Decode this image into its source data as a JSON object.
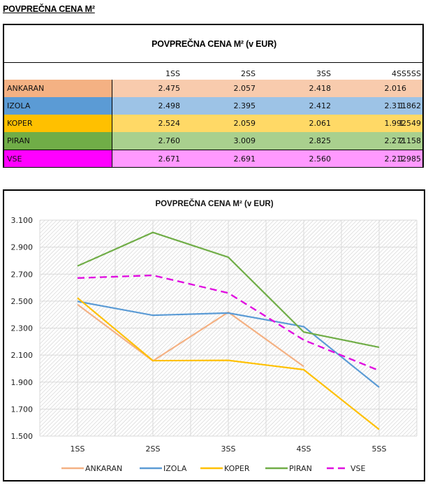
{
  "page_title": "POVPREČNA CENA M²",
  "table": {
    "title": "POVPREČNA CENA M² (v EUR)",
    "columns": [
      "1SS",
      "2SS",
      "3SS",
      "4SS",
      "5SS"
    ],
    "rows": [
      {
        "label": "ANKARAN",
        "values": [
          "2.475",
          "2.057",
          "2.418",
          "2.016",
          ""
        ],
        "label_color": "#F4B183",
        "cell_color": "#F8CBAD"
      },
      {
        "label": "IZOLA",
        "values": [
          "2.498",
          "2.395",
          "2.412",
          "2.311",
          "1.862"
        ],
        "label_color": "#5B9BD5",
        "cell_color": "#9DC3E6"
      },
      {
        "label": "KOPER",
        "values": [
          "2.524",
          "2.059",
          "2.061",
          "1.992",
          "1.549"
        ],
        "label_color": "#FFC000",
        "cell_color": "#FFD966"
      },
      {
        "label": "PIRAN",
        "values": [
          "2.760",
          "3.009",
          "2.825",
          "2.271",
          "2.158"
        ],
        "label_color": "#70AD47",
        "cell_color": "#A9D08E"
      },
      {
        "label": "VSE",
        "values": [
          "2.671",
          "2.691",
          "2.560",
          "2.212",
          "1.985"
        ],
        "label_color": "#FF00FF",
        "cell_color": "#FF99FF"
      }
    ]
  },
  "chart_data": {
    "type": "line",
    "title": "POVPREČNA  CENA M² (v EUR)",
    "xlabel": "",
    "ylabel": "",
    "categories": [
      "1SS",
      "2SS",
      "3SS",
      "4SS",
      "5SS"
    ],
    "ylim": [
      1500,
      3100
    ],
    "yticks": [
      1500,
      1700,
      1900,
      2100,
      2300,
      2500,
      2700,
      2900,
      3100
    ],
    "ytick_labels": [
      "1.500",
      "1.700",
      "1.900",
      "2.100",
      "2.300",
      "2.500",
      "2.700",
      "2.900",
      "3.100"
    ],
    "grid": true,
    "legend": "bottom",
    "series": [
      {
        "name": "ANKARAN",
        "color": "#F4B183",
        "dashed": false,
        "values": [
          2475,
          2057,
          2418,
          2016,
          null
        ]
      },
      {
        "name": "IZOLA",
        "color": "#5B9BD5",
        "dashed": false,
        "values": [
          2498,
          2395,
          2412,
          2311,
          1862
        ]
      },
      {
        "name": "KOPER",
        "color": "#FFC000",
        "dashed": false,
        "values": [
          2524,
          2059,
          2061,
          1992,
          1549
        ]
      },
      {
        "name": "PIRAN",
        "color": "#70AD47",
        "dashed": false,
        "values": [
          2760,
          3009,
          2825,
          2271,
          2158
        ]
      },
      {
        "name": "VSE",
        "color": "#E010E0",
        "dashed": true,
        "values": [
          2671,
          2691,
          2560,
          2212,
          1985
        ]
      }
    ]
  }
}
